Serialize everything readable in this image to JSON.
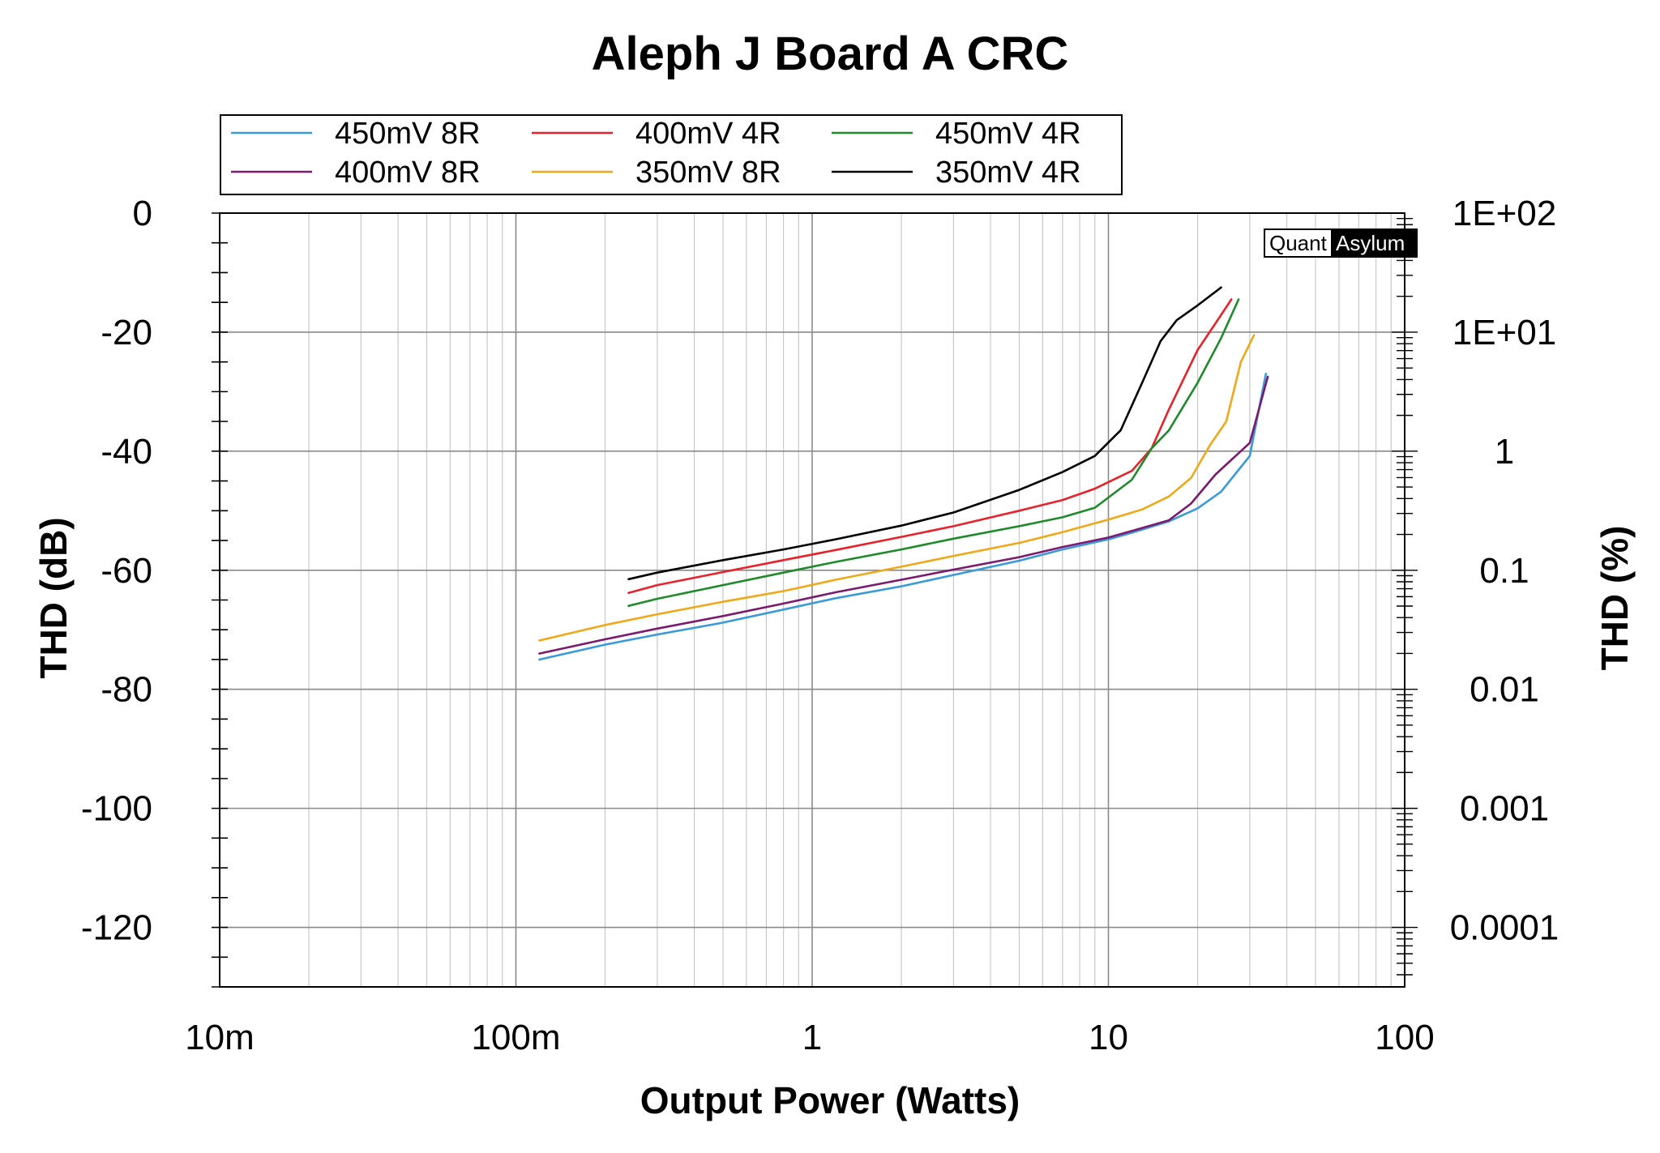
{
  "chart_data": {
    "type": "line",
    "title": "Aleph J Board A CRC",
    "xlabel": "Output Power (Watts)",
    "ylabel": "THD (dB)",
    "y2label": "THD (%)",
    "x_scale": "log",
    "xlim": [
      0.01,
      100
    ],
    "ylim": [
      -130,
      0
    ],
    "x_tick_values": [
      0.01,
      0.1,
      1,
      10,
      100
    ],
    "x_tick_labels": [
      "10m",
      "100m",
      "1",
      "10",
      "100"
    ],
    "y_tick_values": [
      0,
      -20,
      -40,
      -60,
      -80,
      -100,
      -120
    ],
    "y_tick_labels": [
      "0",
      "-20",
      "-40",
      "-60",
      "-80",
      "-100",
      "-120"
    ],
    "y2_tick_labels": [
      "1E+02",
      "1E+01",
      "1",
      "0.1",
      "0.01",
      "0.001",
      "0.0001"
    ],
    "grid": true,
    "legend_position": "top-left",
    "watermark": {
      "left": "Quant",
      "right": "Asylum"
    },
    "series": [
      {
        "name": "450mV 8R",
        "color": "#3a9ad9",
        "x": [
          0.12,
          0.2,
          0.3,
          0.5,
          0.8,
          1.2,
          2,
          3,
          5,
          7,
          10,
          12,
          16,
          20,
          24,
          30,
          34
        ],
        "y": [
          -75,
          -72.5,
          -70.8,
          -68.8,
          -66.6,
          -64.7,
          -62.7,
          -60.8,
          -58.4,
          -56.5,
          -54.8,
          -53.7,
          -51.8,
          -49.6,
          -46.8,
          -40.8,
          -27
        ]
      },
      {
        "name": "400mV 4R",
        "color": "#e8222a",
        "x": [
          0.24,
          0.3,
          0.5,
          0.8,
          1.2,
          2,
          3,
          5,
          7,
          9,
          12,
          14,
          16,
          20,
          23,
          26
        ],
        "y": [
          -63.8,
          -62.5,
          -60.3,
          -58.3,
          -56.6,
          -54.4,
          -52.6,
          -50,
          -48.2,
          -46.3,
          -43.3,
          -39.5,
          -33,
          -23,
          -18.5,
          -14.5
        ]
      },
      {
        "name": "450mV 4R",
        "color": "#1f8a2a",
        "x": [
          0.24,
          0.3,
          0.5,
          0.8,
          1.2,
          2,
          3,
          5,
          7,
          9,
          12,
          14,
          16,
          20,
          24,
          27.5
        ],
        "y": [
          -66,
          -64.8,
          -62.5,
          -60.4,
          -58.6,
          -56.5,
          -54.7,
          -52.6,
          -51.1,
          -49.5,
          -44.8,
          -39.5,
          -36.5,
          -28.5,
          -21,
          -14.5
        ]
      },
      {
        "name": "400mV 8R",
        "color": "#7b1a6e",
        "x": [
          0.12,
          0.2,
          0.3,
          0.5,
          0.8,
          1.2,
          2,
          3,
          5,
          7,
          10,
          12,
          16,
          19,
          23,
          30,
          34.5
        ],
        "y": [
          -74,
          -71.6,
          -69.8,
          -67.7,
          -65.6,
          -63.7,
          -61.6,
          -59.9,
          -57.8,
          -56.1,
          -54.5,
          -53.4,
          -51.6,
          -48.8,
          -43.9,
          -38.6,
          -27.5
        ]
      },
      {
        "name": "350mV 8R",
        "color": "#f0a818",
        "x": [
          0.12,
          0.2,
          0.3,
          0.5,
          0.8,
          1.2,
          2,
          3,
          5,
          7,
          10,
          13,
          16,
          19,
          22,
          25,
          28,
          31
        ],
        "y": [
          -71.8,
          -69.2,
          -67.4,
          -65.3,
          -63.5,
          -61.6,
          -59.4,
          -57.6,
          -55.4,
          -53.6,
          -51.5,
          -49.8,
          -47.6,
          -44.5,
          -39,
          -35,
          -25,
          -20.5
        ]
      },
      {
        "name": "350mV 4R",
        "color": "#000000",
        "x": [
          0.24,
          0.3,
          0.5,
          0.8,
          1.2,
          2,
          3,
          5,
          7,
          9,
          11,
          13,
          15,
          17,
          20,
          24
        ],
        "y": [
          -61.5,
          -60.4,
          -58.3,
          -56.5,
          -54.8,
          -52.5,
          -50.3,
          -46.5,
          -43.5,
          -40.8,
          -36.5,
          -28.5,
          -21.5,
          -18,
          -15.5,
          -12.5
        ]
      }
    ]
  }
}
